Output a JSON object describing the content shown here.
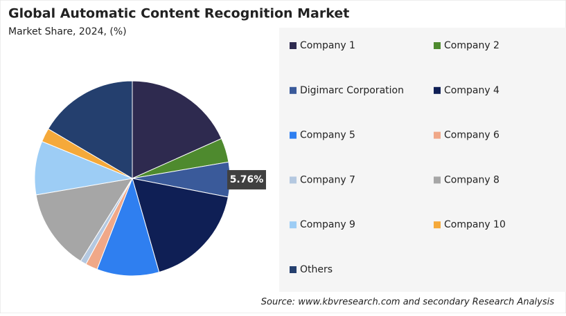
{
  "chart_data": {
    "type": "pie",
    "title": "Global Automatic Content Recognition Market",
    "subtitle": "Market Share, 2024, (%)",
    "source": "Source: www.kbvresearch.com and secondary Research Analysis",
    "categories": [
      "Company 1",
      "Company 2",
      "Digimarc Corporation",
      "Company 4",
      "Company 5",
      "Company 6",
      "Company 7",
      "Company 8",
      "Company 9",
      "Company 10",
      "Others"
    ],
    "values": [
      18.3,
      4,
      5.76,
      17.5,
      10.3,
      2,
      1,
      13.4,
      8.9,
      2.3,
      16.5
    ],
    "value_labels": [
      null,
      null,
      "5.76%",
      null,
      null,
      null,
      null,
      null,
      null,
      null,
      null
    ],
    "colors": [
      "#2e2a4f",
      "#4e8a2e",
      "#3a5a9a",
      "#0f1f55",
      "#2f7ff0",
      "#f0a888",
      "#b4c8e0",
      "#a6a6a6",
      "#9dcdf5",
      "#f5a93a",
      "#243f6e"
    ],
    "legend": "right"
  }
}
